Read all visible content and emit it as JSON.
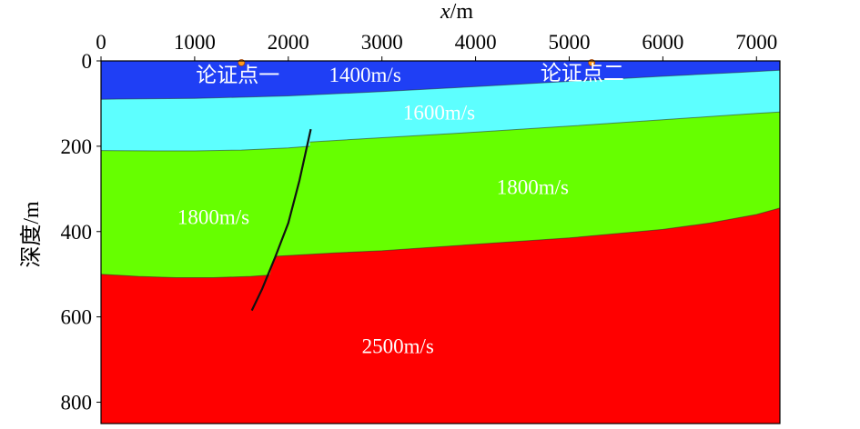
{
  "axes": {
    "x_label_var": "x",
    "x_label_unit": "/m",
    "y_label": "深度/m",
    "x_ticks": [
      "0",
      "1000",
      "2000",
      "3000",
      "4000",
      "5000",
      "6000",
      "7000"
    ],
    "y_ticks": [
      "0",
      "200",
      "400",
      "600",
      "800"
    ],
    "x_range": [
      0,
      7250
    ],
    "y_range": [
      0,
      850
    ]
  },
  "layers": [
    {
      "id": "layer-1",
      "velocity": "1400m/s",
      "color": "#1f3ff5",
      "top": [
        [
          0,
          0
        ],
        [
          7250,
          0
        ]
      ],
      "bottom": [
        [
          0,
          90
        ],
        [
          1000,
          88
        ],
        [
          2000,
          82
        ],
        [
          3000,
          72
        ],
        [
          4000,
          60
        ],
        [
          5000,
          48
        ],
        [
          6000,
          36
        ],
        [
          6800,
          27
        ],
        [
          7250,
          22
        ]
      ]
    },
    {
      "id": "layer-2",
      "velocity": "1600m/s",
      "color": "#5dffff",
      "bottom_left": [
        [
          0,
          210
        ],
        [
          600,
          211
        ],
        [
          1000,
          211
        ],
        [
          1500,
          209
        ],
        [
          2000,
          204
        ],
        [
          2230,
          200
        ]
      ],
      "bottom_right": [
        [
          2230,
          190
        ],
        [
          3000,
          180
        ],
        [
          4000,
          167
        ],
        [
          5000,
          153
        ],
        [
          6000,
          138
        ],
        [
          7000,
          123
        ],
        [
          7250,
          120
        ]
      ]
    },
    {
      "id": "layer-3",
      "velocity": "1800m/s",
      "color": "#66ff00",
      "bottom_left": [
        [
          0,
          500
        ],
        [
          400,
          505
        ],
        [
          800,
          508
        ],
        [
          1200,
          508
        ],
        [
          1600,
          505
        ],
        [
          1800,
          502
        ]
      ],
      "bottom_right": [
        [
          1860,
          458
        ],
        [
          2500,
          450
        ],
        [
          3000,
          445
        ],
        [
          4000,
          430
        ],
        [
          5000,
          415
        ],
        [
          6000,
          395
        ],
        [
          6500,
          380
        ],
        [
          7000,
          360
        ],
        [
          7250,
          345
        ]
      ]
    },
    {
      "id": "layer-4",
      "velocity": "2500m/s",
      "color": "#ff0000"
    }
  ],
  "fault": [
    [
      2240,
      160
    ],
    [
      2120,
      280
    ],
    [
      2000,
      380
    ],
    [
      1860,
      460
    ],
    [
      1720,
      535
    ],
    [
      1610,
      585
    ]
  ],
  "labels": [
    {
      "text": "论证点一",
      "x": 1460,
      "y": 32
    },
    {
      "text": "1400m/s",
      "x": 2820,
      "y": 32
    },
    {
      "text": "论证点二",
      "x": 5140,
      "y": 28
    },
    {
      "text": "1600m/s",
      "x": 3610,
      "y": 120
    },
    {
      "text": "1800m/s",
      "x": 1200,
      "y": 365
    },
    {
      "text": "1800m/s",
      "x": 4610,
      "y": 295
    },
    {
      "text": "2500m/s",
      "x": 3170,
      "y": 668
    }
  ],
  "markers": [
    {
      "name": "demo-point-1-marker",
      "x": 1500
    },
    {
      "name": "demo-point-2-marker",
      "x": 5240
    }
  ]
}
